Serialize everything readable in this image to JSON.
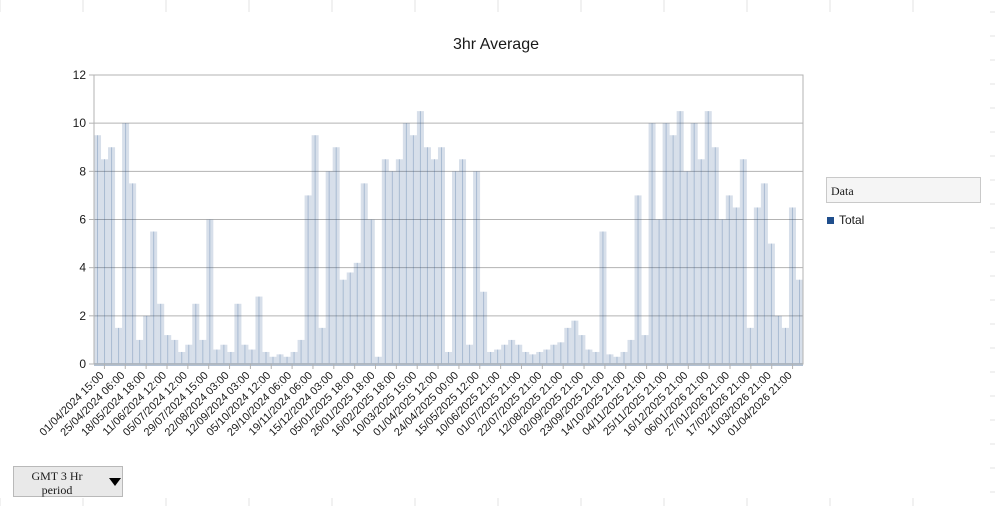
{
  "chart_data": {
    "type": "area",
    "title": "3hr Average",
    "xlabel": "",
    "ylabel": "",
    "ylim": [
      0,
      12
    ],
    "yticks": [
      0,
      2,
      4,
      6,
      8,
      10,
      12
    ],
    "grid": true,
    "legend_position": "right",
    "legend_title": "Data",
    "series_color": "#1f4e8c",
    "x_tick_labels": [
      "01/04/2024 15:00",
      "25/04/2024 06:00",
      "18/05/2024 18:00",
      "11/06/2024 12:00",
      "05/07/2024 12:00",
      "29/07/2024 15:00",
      "22/08/2024 03:00",
      "12/09/2024 03:00",
      "05/10/2024 12:00",
      "29/10/2024 06:00",
      "19/11/2024 06:00",
      "15/12/2024 03:00",
      "05/01/2025 18:00",
      "26/01/2025 18:00",
      "16/02/2025 18:00",
      "10/03/2025 15:00",
      "01/04/2025 12:00",
      "24/04/2025 00:00",
      "15/05/2025 12:00",
      "10/06/2025 21:00",
      "01/07/2025 21:00",
      "22/07/2025 21:00",
      "12/08/2025 21:00",
      "02/09/2025 21:00",
      "23/09/2025 21:00",
      "14/10/2025 21:00",
      "04/11/2025 21:00",
      "25/11/2025 21:00",
      "16/12/2025 21:00",
      "06/01/2026 21:00",
      "27/01/2026 21:00",
      "17/02/2026 21:00",
      "11/03/2026 21:00",
      "01/04/2026 21:00"
    ],
    "series": [
      {
        "name": "Total",
        "values": [
          9.5,
          8.5,
          9.0,
          1.5,
          10.0,
          7.5,
          1.0,
          2.0,
          5.5,
          2.5,
          1.2,
          1.0,
          0.5,
          0.8,
          2.5,
          1.0,
          6.0,
          0.6,
          0.8,
          0.5,
          2.5,
          0.8,
          0.6,
          2.8,
          0.5,
          0.3,
          0.4,
          0.3,
          0.5,
          1.0,
          7.0,
          9.5,
          1.5,
          8.0,
          9.0,
          3.5,
          3.8,
          4.2,
          7.5,
          6.0,
          0.3,
          8.5,
          8.0,
          8.5,
          10.0,
          9.5,
          10.5,
          9.0,
          8.5,
          9.0,
          0.5,
          8.0,
          8.5,
          0.8,
          8.0,
          3.0,
          0.5,
          0.6,
          0.8,
          1.0,
          0.8,
          0.5,
          0.4,
          0.5,
          0.6,
          0.8,
          0.9,
          1.5,
          1.8,
          1.2,
          0.6,
          0.5,
          5.5,
          0.4,
          0.3,
          0.5,
          1.0,
          7.0,
          1.2,
          10.0,
          6.0,
          10.0,
          9.5,
          10.5,
          8.0,
          10.0,
          8.5,
          10.5,
          9.0,
          6.0,
          7.0,
          6.5,
          8.5,
          1.5,
          6.5,
          7.5,
          5.0,
          2.0,
          1.5,
          6.5,
          3.5
        ]
      }
    ]
  },
  "controls": {
    "period_dropdown_label": "GMT 3 Hr period"
  }
}
